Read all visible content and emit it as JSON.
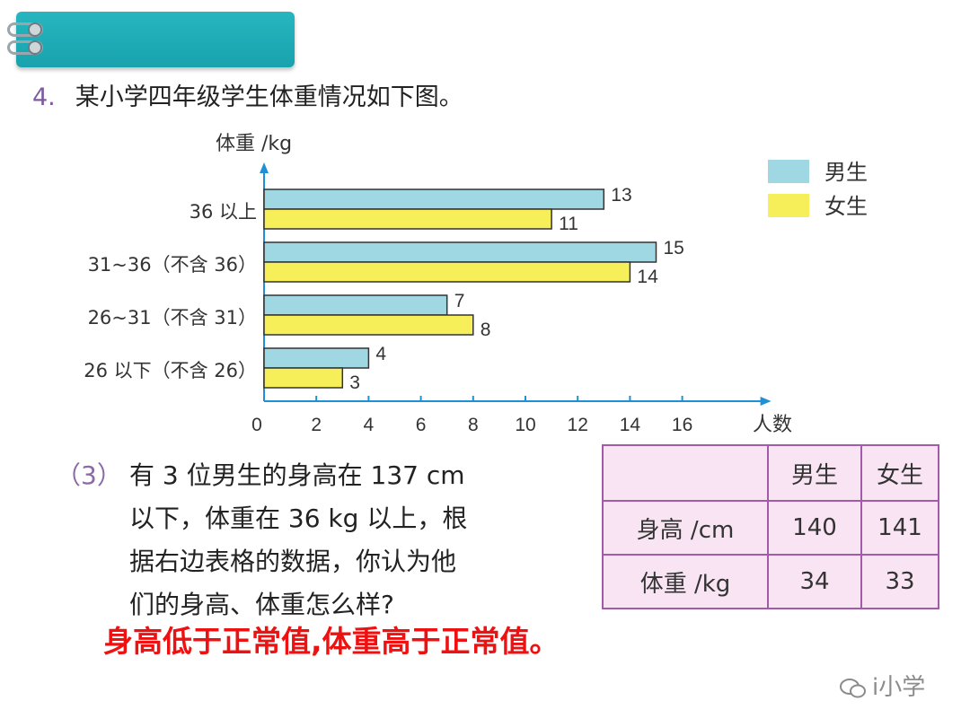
{
  "question": {
    "number": "4.",
    "text": "某小学四年级学生体重情况如下图。"
  },
  "chart_data": {
    "type": "bar",
    "orientation": "horizontal",
    "ylabel": "体重 /kg",
    "xlabel": "人数",
    "categories": [
      "36 以上",
      "31~36（不含 36）",
      "26~31（不含 31）",
      "26 以下（不含 26）"
    ],
    "series": [
      {
        "name": "男生",
        "values": [
          13,
          15,
          7,
          4
        ],
        "color": "#9fd7e2"
      },
      {
        "name": "女生",
        "values": [
          11,
          14,
          8,
          3
        ],
        "color": "#f6ef5a"
      }
    ],
    "xlim": [
      0,
      16
    ],
    "xticks": [
      "0",
      "2",
      "4",
      "6",
      "8",
      "10",
      "12",
      "14",
      "16"
    ],
    "legend_position": "top-right",
    "grid": false
  },
  "sub_question": {
    "number": "（3）",
    "lines": [
      "有 3 位男生的身高在 137 cm",
      "以下，体重在 36 kg 以上，根",
      "据右边表格的数据，你认为他",
      "们的身高、体重怎么样?"
    ]
  },
  "answer": "身高低于正常值,体重高于正常值。",
  "table": {
    "header": [
      "",
      "男生",
      "女生"
    ],
    "rows": [
      [
        "身高 /cm",
        "140",
        "141"
      ],
      [
        "体重 /kg",
        "34",
        "33"
      ]
    ]
  },
  "watermark": "i小学"
}
